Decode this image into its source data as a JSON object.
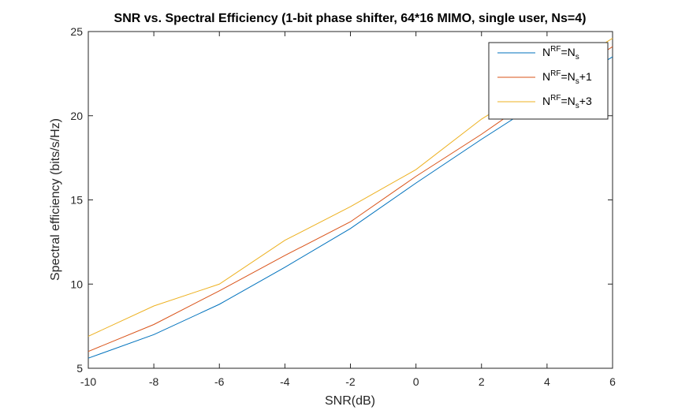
{
  "chart_data": {
    "type": "line",
    "title": "SNR vs. Spectral Efficiency (1-bit phase shifter, 64*16 MIMO, single user, Ns=4)",
    "xlabel": "SNR(dB)",
    "ylabel": "Spectral efficiency (bits/s/Hz)",
    "xlim": [
      -10,
      6
    ],
    "ylim": [
      5,
      25
    ],
    "xticks": [
      -10,
      -8,
      -6,
      -4,
      -2,
      0,
      2,
      4,
      6
    ],
    "yticks": [
      5,
      10,
      15,
      20,
      25
    ],
    "xtick_labels": [
      "-10",
      "-8",
      "-6",
      "-4",
      "-2",
      "0",
      "2",
      "4",
      "6"
    ],
    "ytick_labels": [
      "5",
      "10",
      "15",
      "20",
      "25"
    ],
    "grid": false,
    "legend_position": "top-right",
    "x": [
      -10,
      -8,
      -6,
      -4,
      -2,
      0,
      2,
      4,
      6
    ],
    "series": [
      {
        "legend": {
          "base": "N",
          "sup": "RF",
          "mid": "=N",
          "sub": "s",
          "tail": ""
        },
        "color": "#0072BD",
        "values": [
          5.6,
          7.0,
          8.8,
          11.0,
          13.3,
          16.0,
          18.6,
          21.1,
          23.5
        ]
      },
      {
        "legend": {
          "base": "N",
          "sup": "RF",
          "mid": "=N",
          "sub": "s",
          "tail": "+1"
        },
        "color": "#D95319",
        "values": [
          6.0,
          7.6,
          9.6,
          11.7,
          13.7,
          16.4,
          18.9,
          21.6,
          24.1
        ]
      },
      {
        "legend": {
          "base": "N",
          "sup": "RF",
          "mid": "=N",
          "sub": "s",
          "tail": "+3"
        },
        "color": "#EDB120",
        "values": [
          6.9,
          8.7,
          10.0,
          12.6,
          14.6,
          16.8,
          19.8,
          22.2,
          24.6
        ]
      }
    ]
  }
}
